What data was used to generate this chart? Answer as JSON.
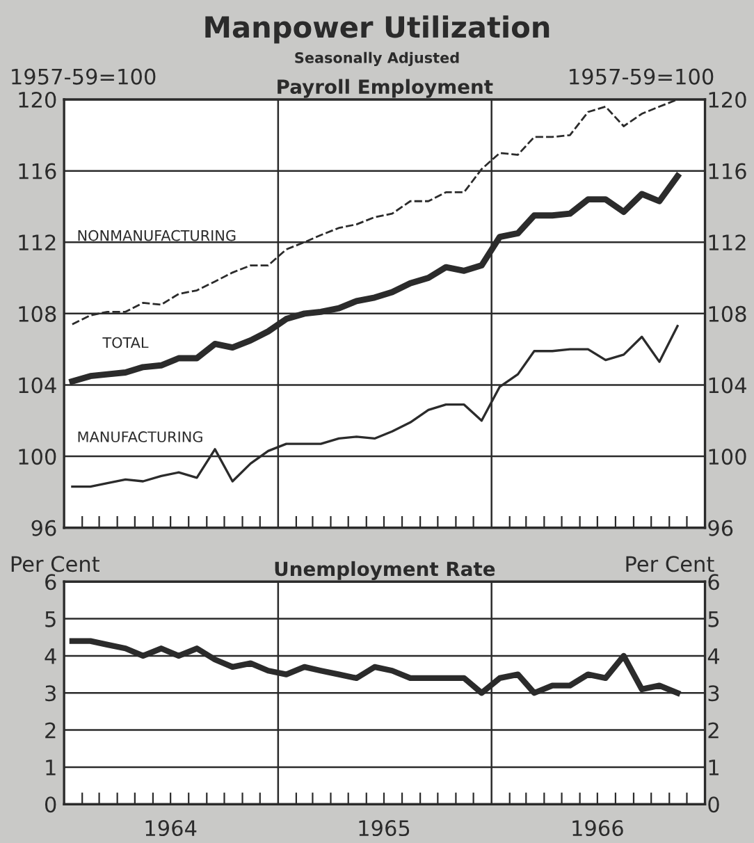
{
  "chart_data": [
    {
      "type": "line",
      "title": "Manpower Utilization",
      "subtitle": "Seasonally Adjusted",
      "annotations": [
        "Payroll Employment"
      ],
      "ylabel": "1957-59=100",
      "y2label": "1957-59=100",
      "x": [
        "1964-01-15",
        "1964-02-15",
        "1964-03-15",
        "1964-04-15",
        "1964-05-15",
        "1964-06-15",
        "1964-07-15",
        "1964-08-15",
        "1964-09-15",
        "1964-10-15",
        "1964-11-15",
        "1964-12-15",
        "1965-01-15",
        "1965-02-15",
        "1965-03-15",
        "1965-04-15",
        "1965-05-15",
        "1965-06-15",
        "1965-07-15",
        "1965-08-15",
        "1965-09-15",
        "1965-10-15",
        "1965-11-15",
        "1965-12-15",
        "1966-01-15",
        "1966-02-15",
        "1966-03-15",
        "1966-04-15",
        "1966-05-15",
        "1966-06-15",
        "1966-07-15",
        "1966-08-15",
        "1966-09-15",
        "1966-10-15",
        "1966-11-15"
      ],
      "series": [
        {
          "name": "NONMANUFACTURING",
          "color": "#2b2b2b",
          "line_style": "dashed",
          "values": [
            107.4,
            107.9,
            108.1,
            108.1,
            108.6,
            108.5,
            109.1,
            109.3,
            109.8,
            110.3,
            110.7,
            110.7,
            111.6,
            112.0,
            112.4,
            112.8,
            113.0,
            113.4,
            113.6,
            114.3,
            114.3,
            114.8,
            114.8,
            116.1,
            117.0,
            116.9,
            117.9,
            117.9,
            118.0,
            119.3,
            119.6,
            118.5,
            119.2,
            119.6,
            120.0
          ]
        },
        {
          "name": "TOTAL",
          "color": "#2b2b2b",
          "line_style": "solid",
          "values": [
            104.2,
            104.5,
            104.6,
            104.7,
            105.0,
            105.1,
            105.5,
            105.5,
            106.3,
            106.1,
            106.5,
            107.0,
            107.7,
            108.0,
            108.1,
            108.3,
            108.7,
            108.9,
            109.2,
            109.7,
            110.0,
            110.6,
            110.4,
            110.7,
            112.3,
            112.5,
            113.5,
            113.5,
            113.6,
            114.4,
            114.4,
            113.7,
            114.7,
            114.3,
            115.7
          ]
        },
        {
          "name": "MANUFACTURING",
          "color": "#2b2b2b",
          "line_style": "solid",
          "values": [
            98.3,
            98.3,
            98.5,
            98.7,
            98.6,
            98.9,
            99.1,
            98.8,
            100.4,
            98.6,
            99.6,
            100.3,
            100.7,
            100.7,
            100.7,
            101.0,
            101.1,
            101.0,
            101.4,
            101.9,
            102.6,
            102.9,
            102.9,
            102.0,
            103.9,
            104.6,
            105.9,
            105.9,
            106.0,
            106.0,
            105.4,
            105.7,
            106.7,
            105.3,
            107.3
          ]
        }
      ],
      "xlim": [
        "1964-01-01",
        "1967-01-01"
      ],
      "xticks": [
        {
          "value": "1964-02-01",
          "label": null
        },
        {
          "value": "1964-03-01",
          "label": null
        },
        {
          "value": "1964-04-01",
          "label": null
        },
        {
          "value": "1964-05-01",
          "label": null
        },
        {
          "value": "1964-06-01",
          "label": null
        },
        {
          "value": "1964-07-01",
          "label": null
        },
        {
          "value": "1964-08-01",
          "label": null
        },
        {
          "value": "1964-09-01",
          "label": null
        },
        {
          "value": "1964-10-01",
          "label": null
        },
        {
          "value": "1964-11-01",
          "label": null
        },
        {
          "value": "1964-12-01",
          "label": null
        },
        {
          "value": "1965-02-01",
          "label": null
        },
        {
          "value": "1965-03-01",
          "label": null
        },
        {
          "value": "1965-04-01",
          "label": null
        },
        {
          "value": "1965-05-01",
          "label": null
        },
        {
          "value": "1965-06-01",
          "label": null
        },
        {
          "value": "1965-07-01",
          "label": null
        },
        {
          "value": "1965-08-01",
          "label": null
        },
        {
          "value": "1965-09-01",
          "label": null
        },
        {
          "value": "1965-10-01",
          "label": null
        },
        {
          "value": "1965-11-01",
          "label": null
        },
        {
          "value": "1965-12-01",
          "label": null
        },
        {
          "value": "1966-02-01",
          "label": null
        },
        {
          "value": "1966-03-01",
          "label": null
        },
        {
          "value": "1966-04-01",
          "label": null
        },
        {
          "value": "1966-05-01",
          "label": null
        },
        {
          "value": "1966-06-01",
          "label": null
        },
        {
          "value": "1966-07-01",
          "label": null
        },
        {
          "value": "1966-08-01",
          "label": null
        },
        {
          "value": "1966-09-01",
          "label": null
        },
        {
          "value": "1966-10-01",
          "label": null
        },
        {
          "value": "1966-11-01",
          "label": null
        },
        {
          "value": "1966-12-01",
          "label": null
        }
      ],
      "ylim": [
        96,
        120
      ],
      "yticks": [
        96,
        100,
        104,
        108,
        112,
        116,
        120
      ],
      "y2lim": [
        96,
        120
      ],
      "y2ticks": [
        96,
        100,
        104,
        108,
        112,
        116,
        120
      ],
      "ref_lines": [
        {
          "axis": "x",
          "value": "1965-01-01",
          "color": "#2b2b2b"
        },
        {
          "axis": "x",
          "value": "1966-01-01",
          "color": "#2b2b2b"
        }
      ],
      "grid": "y",
      "tick_labels": "y",
      "legend": false
    },
    {
      "type": "line",
      "title": "Unemployment Rate",
      "ylabel": "Per Cent",
      "y2label": "Per Cent",
      "x": [
        "1964-01-15",
        "1964-02-15",
        "1964-03-15",
        "1964-04-15",
        "1964-05-15",
        "1964-06-15",
        "1964-07-15",
        "1964-08-15",
        "1964-09-15",
        "1964-10-15",
        "1964-11-15",
        "1964-12-15",
        "1965-01-15",
        "1965-02-15",
        "1965-03-15",
        "1965-04-15",
        "1965-05-15",
        "1965-06-15",
        "1965-07-15",
        "1965-08-15",
        "1965-09-15",
        "1965-10-15",
        "1965-11-15",
        "1965-12-15",
        "1966-01-15",
        "1966-02-15",
        "1966-03-15",
        "1966-04-15",
        "1966-05-15",
        "1966-06-15",
        "1966-07-15",
        "1966-08-15",
        "1966-09-15",
        "1966-10-15",
        "1966-11-15"
      ],
      "series": [
        {
          "color": "#2b2b2b",
          "line_style": "solid",
          "values": [
            4.4,
            4.4,
            4.3,
            4.2,
            4.0,
            4.2,
            4.0,
            4.2,
            3.9,
            3.7,
            3.8,
            3.6,
            3.5,
            3.7,
            3.6,
            3.5,
            3.4,
            3.7,
            3.6,
            3.4,
            3.4,
            3.4,
            3.4,
            3.0,
            3.4,
            3.5,
            3.0,
            3.2,
            3.2,
            3.5,
            3.4,
            4.0,
            3.1,
            3.2,
            3.0
          ]
        }
      ],
      "xlim": [
        "1964-01-01",
        "1967-01-01"
      ],
      "xticks": [
        {
          "value": "1964-02-01",
          "label": null
        },
        {
          "value": "1964-03-01",
          "label": null
        },
        {
          "value": "1964-04-01",
          "label": null
        },
        {
          "value": "1964-05-01",
          "label": null
        },
        {
          "value": "1964-06-01",
          "label": null
        },
        {
          "value": "1964-07-01",
          "label": "1964"
        },
        {
          "value": "1964-08-01",
          "label": null
        },
        {
          "value": "1964-09-01",
          "label": null
        },
        {
          "value": "1964-10-01",
          "label": null
        },
        {
          "value": "1964-11-01",
          "label": null
        },
        {
          "value": "1964-12-01",
          "label": null
        },
        {
          "value": "1965-02-01",
          "label": null
        },
        {
          "value": "1965-03-01",
          "label": null
        },
        {
          "value": "1965-04-01",
          "label": null
        },
        {
          "value": "1965-05-01",
          "label": null
        },
        {
          "value": "1965-06-01",
          "label": null
        },
        {
          "value": "1965-07-01",
          "label": "1965"
        },
        {
          "value": "1965-08-01",
          "label": null
        },
        {
          "value": "1965-09-01",
          "label": null
        },
        {
          "value": "1965-10-01",
          "label": null
        },
        {
          "value": "1965-11-01",
          "label": null
        },
        {
          "value": "1965-12-01",
          "label": null
        },
        {
          "value": "1966-02-01",
          "label": null
        },
        {
          "value": "1966-03-01",
          "label": null
        },
        {
          "value": "1966-04-01",
          "label": null
        },
        {
          "value": "1966-05-01",
          "label": null
        },
        {
          "value": "1966-06-01",
          "label": null
        },
        {
          "value": "1966-07-01",
          "label": "1966"
        },
        {
          "value": "1966-08-01",
          "label": null
        },
        {
          "value": "1966-09-01",
          "label": null
        },
        {
          "value": "1966-10-01",
          "label": null
        },
        {
          "value": "1966-11-01",
          "label": null
        },
        {
          "value": "1966-12-01",
          "label": null
        }
      ],
      "ylim": [
        0,
        6
      ],
      "yticks": [
        0,
        1,
        2,
        3,
        4,
        5,
        6
      ],
      "y2lim": [
        0,
        6
      ],
      "y2ticks": [
        0,
        1,
        2,
        3,
        4,
        5,
        6
      ],
      "ref_lines": [
        {
          "axis": "x",
          "value": "1965-01-01",
          "color": "#2b2b2b"
        },
        {
          "axis": "x",
          "value": "1966-01-01",
          "color": "#2b2b2b"
        }
      ],
      "grid": "y",
      "legend": false
    }
  ]
}
